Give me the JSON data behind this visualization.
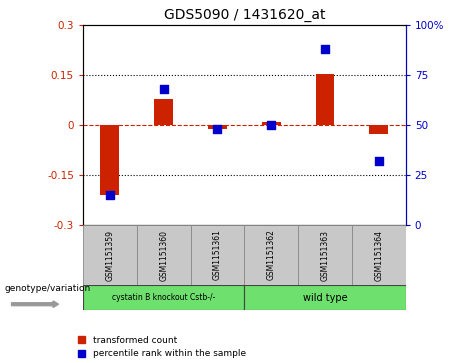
{
  "title": "GDS5090 / 1431620_at",
  "categories": [
    "GSM1151359",
    "GSM1151360",
    "GSM1151361",
    "GSM1151362",
    "GSM1151363",
    "GSM1151364"
  ],
  "red_values": [
    -0.21,
    0.08,
    -0.01,
    0.01,
    0.155,
    -0.025
  ],
  "blue_values": [
    15,
    68,
    48,
    50,
    88,
    32
  ],
  "ylim_left": [
    -0.3,
    0.3
  ],
  "ylim_right": [
    0,
    100
  ],
  "yticks_left": [
    -0.3,
    -0.15,
    0,
    0.15,
    0.3
  ],
  "yticks_right": [
    0,
    25,
    50,
    75,
    100
  ],
  "ytick_labels_left": [
    "-0.3",
    "-0.15",
    "0",
    "0.15",
    "0.3"
  ],
  "ytick_labels_right": [
    "0",
    "25",
    "50",
    "75",
    "100%"
  ],
  "hlines": [
    0.15,
    -0.15
  ],
  "zero_line": 0,
  "group1_label": "cystatin B knockout Cstb-/-",
  "group2_label": "wild type",
  "group1_indices": [
    0,
    1,
    2
  ],
  "group2_indices": [
    3,
    4,
    5
  ],
  "group1_color": "#6EE06E",
  "group2_color": "#6EE06E",
  "bar_color": "#CC2200",
  "dot_color": "#0000CC",
  "bar_width": 0.35,
  "dot_size": 40,
  "background_plot": "#FFFFFF",
  "background_label": "#C8C8C8",
  "genotype_label": "genotype/variation",
  "legend_red": "transformed count",
  "legend_blue": "percentile rank within the sample"
}
